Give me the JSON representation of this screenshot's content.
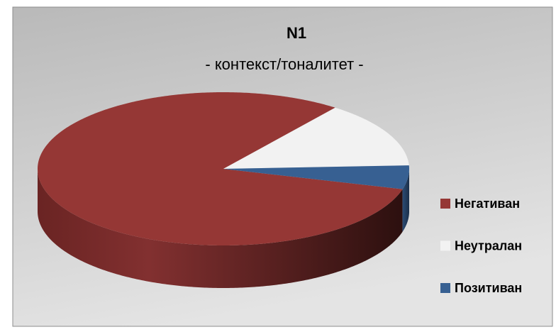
{
  "chart_data": {
    "type": "pie",
    "title": "N1",
    "subtitle": "- контекст/тоналитет -",
    "categories": [
      "Негативан",
      "Неутралан",
      "Позитиван"
    ],
    "values": [
      81,
      14,
      5
    ],
    "colors": [
      "#953735",
      "#f2f2f2",
      "#376092"
    ],
    "legend": "right"
  }
}
